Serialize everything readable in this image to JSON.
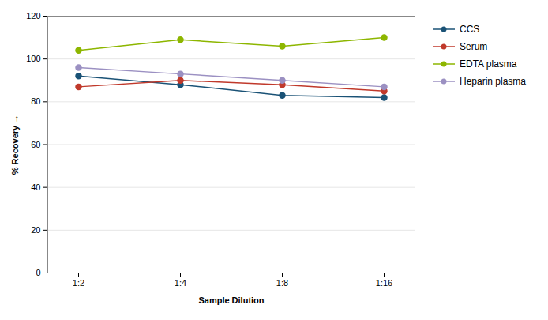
{
  "chart_data": {
    "type": "line",
    "categories": [
      "1:2",
      "1:4",
      "1:8",
      "1:16"
    ],
    "series": [
      {
        "name": "CCS",
        "color": "#1a5276",
        "values": [
          92,
          88,
          83,
          82
        ]
      },
      {
        "name": "Serum",
        "color": "#c0392b",
        "values": [
          87,
          90,
          88,
          85
        ]
      },
      {
        "name": "EDTA plasma",
        "color": "#8db600",
        "values": [
          104,
          109,
          106,
          110
        ]
      },
      {
        "name": "Heparin plasma",
        "color": "#9b90c2",
        "values": [
          96,
          93,
          90,
          87
        ]
      }
    ],
    "xlabel": "Sample Dilution",
    "ylabel": "% Recovery",
    "ylim": [
      0,
      120
    ],
    "yticks": [
      0,
      20,
      40,
      60,
      80,
      100,
      120
    ],
    "grid": true,
    "legend": "right",
    "marker": "circle"
  }
}
